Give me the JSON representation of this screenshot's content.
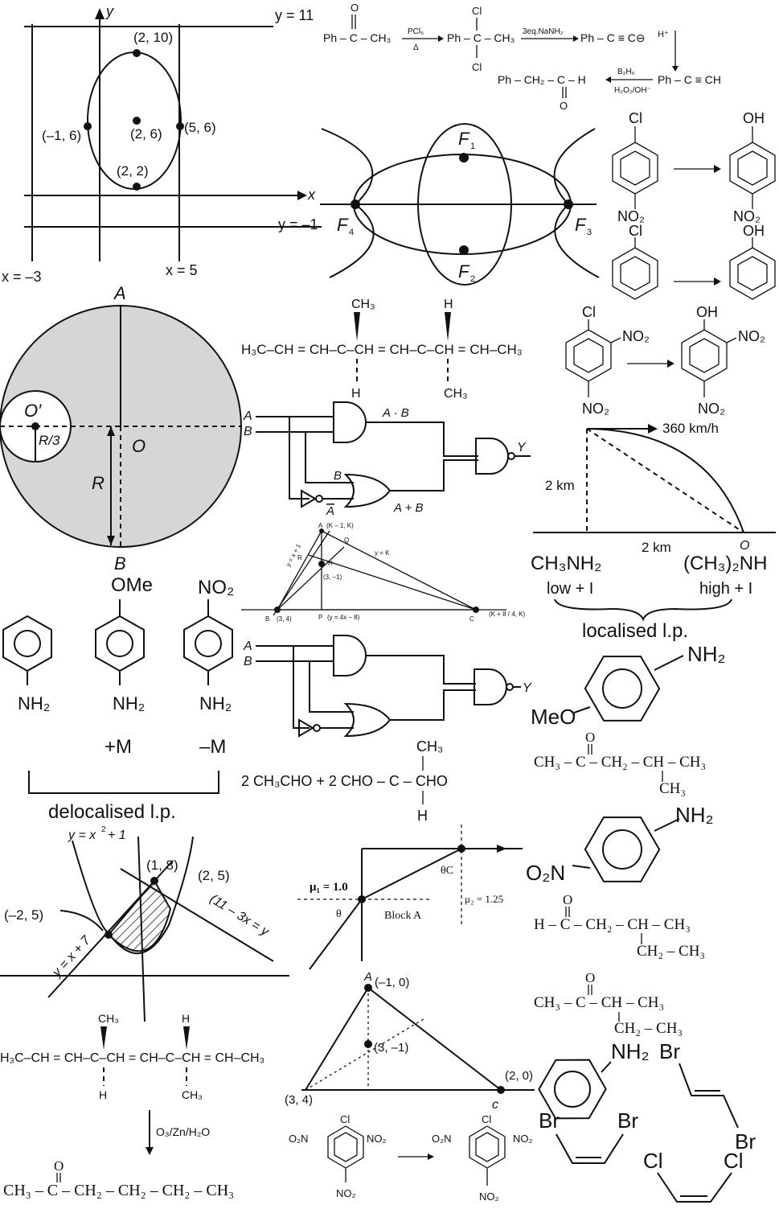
{
  "ellipse_graph": {
    "y_axis": "y",
    "x_axis": "x",
    "line_top": "y = 11",
    "line_bottom": "y = –1",
    "line_left": "x = –3",
    "line_right": "x = 5",
    "p_top": "(2, 10)",
    "p_left": "(–1, 6)",
    "p_center": "(2, 6)",
    "p_right": "(5, 6)",
    "p_bottom": "(2, 2)"
  },
  "reaction_acetophenone": {
    "start": "Ph – C – CH₃",
    "reagent1_top": "PCl₅",
    "reagent1_bot": "Δ",
    "mid": "Ph – C – CH₃",
    "cl": "Cl",
    "o": "O",
    "reagent2": "3eq.NaNH₂",
    "acetylide": "Ph – C ≡ C⊖",
    "hplus": "H⁺",
    "alkyne": "Ph – C ≡ CH",
    "reagent3_top": "B₂H₆",
    "reagent3_bot": "H₂O₂/OH⁻",
    "product": "Ph – CH₂ – C – H"
  },
  "ellipses_foci": {
    "f1": "F",
    "f2": "F",
    "f3": "F",
    "f4": "F",
    "s1": "1",
    "s2": "2",
    "s3": "3",
    "s4": "4"
  },
  "chlorobenzene_rxn": {
    "cl": "Cl",
    "oh": "OH",
    "no2": "NO₂"
  },
  "circle_cavity": {
    "A": "A",
    "B": "B",
    "O": "O",
    "Oprime": "O′",
    "R": "R",
    "R3": "R/3"
  },
  "diene_top": {
    "left": "H₃C–CH = CH–C–CH = CH–C–CH = CH–CH₃",
    "ch3": "CH₃",
    "h": "H"
  },
  "dinitro": {
    "cl": "Cl",
    "no2": "NO₂",
    "oh": "OH"
  },
  "logic_gate_1": {
    "A": "A",
    "B": "B",
    "AB": "A · B",
    "Bin": "B",
    "Abar": "A",
    "AbarB": "A + B",
    "Y": "Y"
  },
  "projectile": {
    "speed": "360 km/h",
    "height": "2 km",
    "range": "2 km",
    "origin": "O"
  },
  "amine_basicity": {
    "m1": "CH₃NH₂",
    "m1_note": "low + I",
    "m2": "(CH₃)₂NH",
    "m2_note": "high + I",
    "caption": "localised l.p."
  },
  "triangle_small": {
    "A": "A",
    "A_coord": "(K – 1, K)",
    "Q": "Q",
    "R": "R",
    "H": "H",
    "H_coord": "(3, –1)",
    "B": "B",
    "B_coord": "(3, 4)",
    "P": "P",
    "P_line": "(y = 4x – 8)",
    "C": "C",
    "C_coord": "(K + 8 / 4, K)",
    "line1": "y = x + 1",
    "line2": "y = K"
  },
  "anilines": {
    "ome": "OMe",
    "no2": "NO₂",
    "nh2": "NH₂",
    "plusM": "+M",
    "minusM": "–M",
    "caption": "delocalised l.p."
  },
  "logic_gate_2": {
    "A": "A",
    "B": "B",
    "Y": "Y"
  },
  "anisidine": {
    "nh2": "NH₂",
    "meo": "MeO"
  },
  "ketone1": {
    "formula": "CH₃ – C – CH₂ – CH – CH₃",
    "o": "O",
    "ch3": "CH₃"
  },
  "aldol": {
    "left": "2 CH₃CHO + 2 CHO – C – CHO",
    "ch3": "CH₃",
    "h": "H"
  },
  "parabola": {
    "curve": "y = x",
    "sup": "2",
    "curve_tail": " + 1",
    "p1": "(1, 8)",
    "p2": "(2, 5)",
    "p3": "(–2, 5)",
    "line1": "y = x + 7",
    "line2": "(11 – 3x = y"
  },
  "refraction": {
    "mu1": "μ₁ = 1.0",
    "mu2": "μ₂ = 1.25",
    "theta": "θ",
    "thetaC": "θC",
    "block": "Block A"
  },
  "nitroaniline": {
    "nh2": "NH₂",
    "o2n": "O₂N"
  },
  "aldehyde": {
    "formula": "H – C – CH₂ – CH – CH₃",
    "o": "O",
    "sub": "CH₂ – CH₃"
  },
  "diene_bottom": {
    "formula": "H₃C–CH = CH–C–CH = CH–C–CH = CH–CH₃",
    "ch3": "CH₃",
    "h": "H",
    "reagent": "O₃/Zn/H₂O",
    "product": "CH₃ – C – CH₂ – CH₂ – CH₂ – CH₃",
    "o": "O"
  },
  "triangle_big": {
    "A": "A",
    "A_coord": "(–1, 0)",
    "H": "(3, –1)",
    "B": "(3, 4)",
    "C": "c",
    "C_coord": "(2, 0)"
  },
  "ketone2": {
    "formula": "CH₃ – C – CH – CH₃",
    "o": "O",
    "sub": "CH₂ – CH₃"
  },
  "trinitro": {
    "cl": "Cl",
    "no2": "NO₂",
    "o2n": "O₂N"
  },
  "aniline_br": {
    "nh2": "NH₂",
    "br": "Br",
    "cl": "Cl"
  }
}
